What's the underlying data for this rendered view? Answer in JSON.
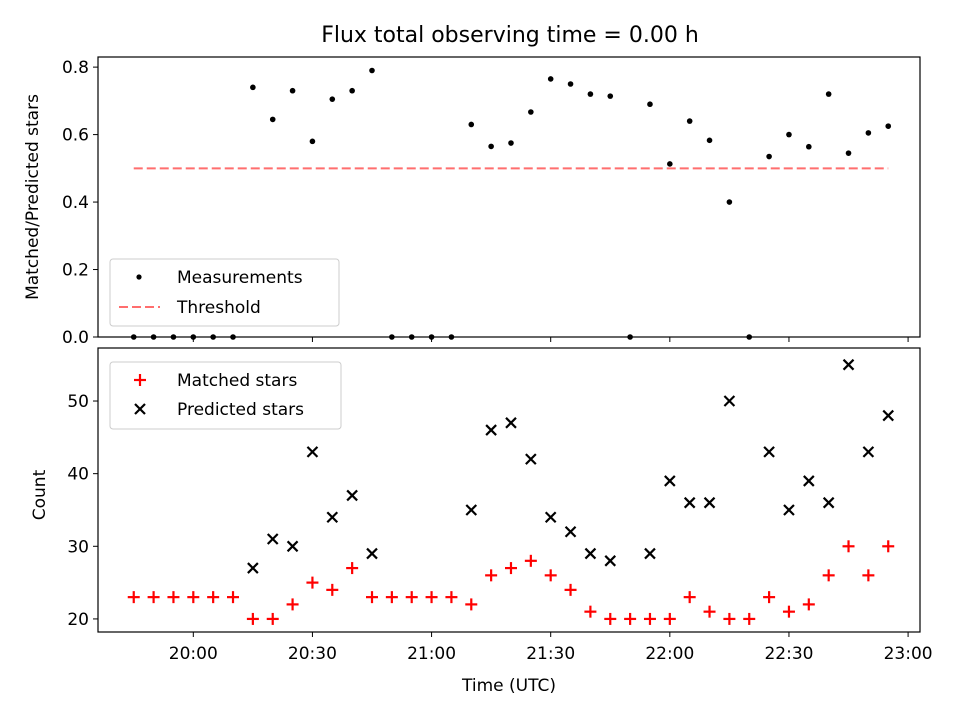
{
  "chart_data": [
    {
      "type": "scatter",
      "title": "Flux total observing time = 0.00 h",
      "ylabel": "Matched/Predicted stars",
      "xlabel": "",
      "ylim": [
        0,
        0.83
      ],
      "yticks": [
        "0.0",
        "0.2",
        "0.4",
        "0.6",
        "0.8"
      ],
      "ytick_values": [
        0,
        0.2,
        0.4,
        0.6,
        0.8
      ],
      "legend_location": "lower-left",
      "grid": false,
      "series": [
        {
          "name": "Measurements",
          "marker": "dot",
          "color": "#000000",
          "x": [
            "19:45",
            "19:50",
            "19:55",
            "20:00",
            "20:05",
            "20:10",
            "20:15",
            "20:20",
            "20:25",
            "20:30",
            "20:35",
            "20:40",
            "20:45",
            "20:50",
            "20:55",
            "21:00",
            "21:05",
            "21:10",
            "21:15",
            "21:20",
            "21:25",
            "21:30",
            "21:35",
            "21:40",
            "21:45",
            "21:50",
            "21:55",
            "22:00",
            "22:05",
            "22:10",
            "22:15",
            "22:20",
            "22:25",
            "22:30",
            "22:35",
            "22:40",
            "22:45",
            "22:50",
            "22:55"
          ],
          "y": [
            0.0,
            0.0,
            0.0,
            0.0,
            0.0,
            0.0,
            0.74,
            0.645,
            0.73,
            0.58,
            0.705,
            0.73,
            0.79,
            0.0,
            0.0,
            0.0,
            0.0,
            0.63,
            0.565,
            0.575,
            0.667,
            0.765,
            0.75,
            0.72,
            0.714,
            0.0,
            0.69,
            0.513,
            0.64,
            0.583,
            0.4,
            0.0,
            0.535,
            0.6,
            0.564,
            0.72,
            0.545,
            0.605,
            0.625
          ]
        },
        {
          "name": "Threshold",
          "style": "dashed",
          "color": "#ff6e6e",
          "x": [
            "19:45",
            "22:55"
          ],
          "y": [
            0.5,
            0.5
          ]
        }
      ]
    },
    {
      "type": "scatter",
      "title": "",
      "xlabel": "Time (UTC)",
      "ylabel": "Count",
      "ylim": [
        18.2,
        57.3
      ],
      "yticks": [
        "20",
        "30",
        "40",
        "50"
      ],
      "ytick_values": [
        20,
        30,
        40,
        50
      ],
      "xtick_labels": [
        "20:00",
        "20:30",
        "21:00",
        "21:30",
        "22:00",
        "22:30",
        "23:00"
      ],
      "xtick_values": [
        "20:00",
        "20:30",
        "21:00",
        "21:30",
        "22:00",
        "22:30",
        "23:00"
      ],
      "xlim": [
        "19:36",
        "23:03"
      ],
      "legend_location": "top-left",
      "grid": false,
      "series": [
        {
          "name": "Matched stars",
          "marker": "plus",
          "color": "#ff0000",
          "x": [
            "19:45",
            "19:50",
            "19:55",
            "20:00",
            "20:05",
            "20:10",
            "20:15",
            "20:20",
            "20:25",
            "20:30",
            "20:35",
            "20:40",
            "20:45",
            "20:50",
            "20:55",
            "21:00",
            "21:05",
            "21:10",
            "21:15",
            "21:20",
            "21:25",
            "21:30",
            "21:35",
            "21:40",
            "21:45",
            "21:50",
            "21:55",
            "22:00",
            "22:05",
            "22:10",
            "22:15",
            "22:20",
            "22:25",
            "22:30",
            "22:35",
            "22:40",
            "22:45",
            "22:50",
            "22:55"
          ],
          "y": [
            23,
            23,
            23,
            23,
            23,
            23,
            20,
            20,
            22,
            25,
            24,
            27,
            23,
            23,
            23,
            23,
            23,
            22,
            26,
            27,
            28,
            26,
            24,
            21,
            20,
            20,
            20,
            20,
            23,
            21,
            20,
            20,
            23,
            21,
            22,
            26,
            30,
            26,
            30
          ]
        },
        {
          "name": "Predicted stars",
          "marker": "x",
          "color": "#000000",
          "x": [
            "20:15",
            "20:20",
            "20:25",
            "20:30",
            "20:35",
            "20:40",
            "20:45",
            "21:10",
            "21:15",
            "21:20",
            "21:25",
            "21:30",
            "21:35",
            "21:40",
            "21:45",
            "21:55",
            "22:00",
            "22:05",
            "22:10",
            "22:15",
            "22:25",
            "22:30",
            "22:35",
            "22:40",
            "22:45",
            "22:50",
            "22:55"
          ],
          "y": [
            27,
            31,
            30,
            43,
            34,
            37,
            29,
            35,
            46,
            47,
            42,
            34,
            32,
            29,
            28,
            29,
            39,
            36,
            36,
            50,
            43,
            35,
            39,
            36,
            55,
            43,
            48
          ]
        }
      ]
    }
  ]
}
